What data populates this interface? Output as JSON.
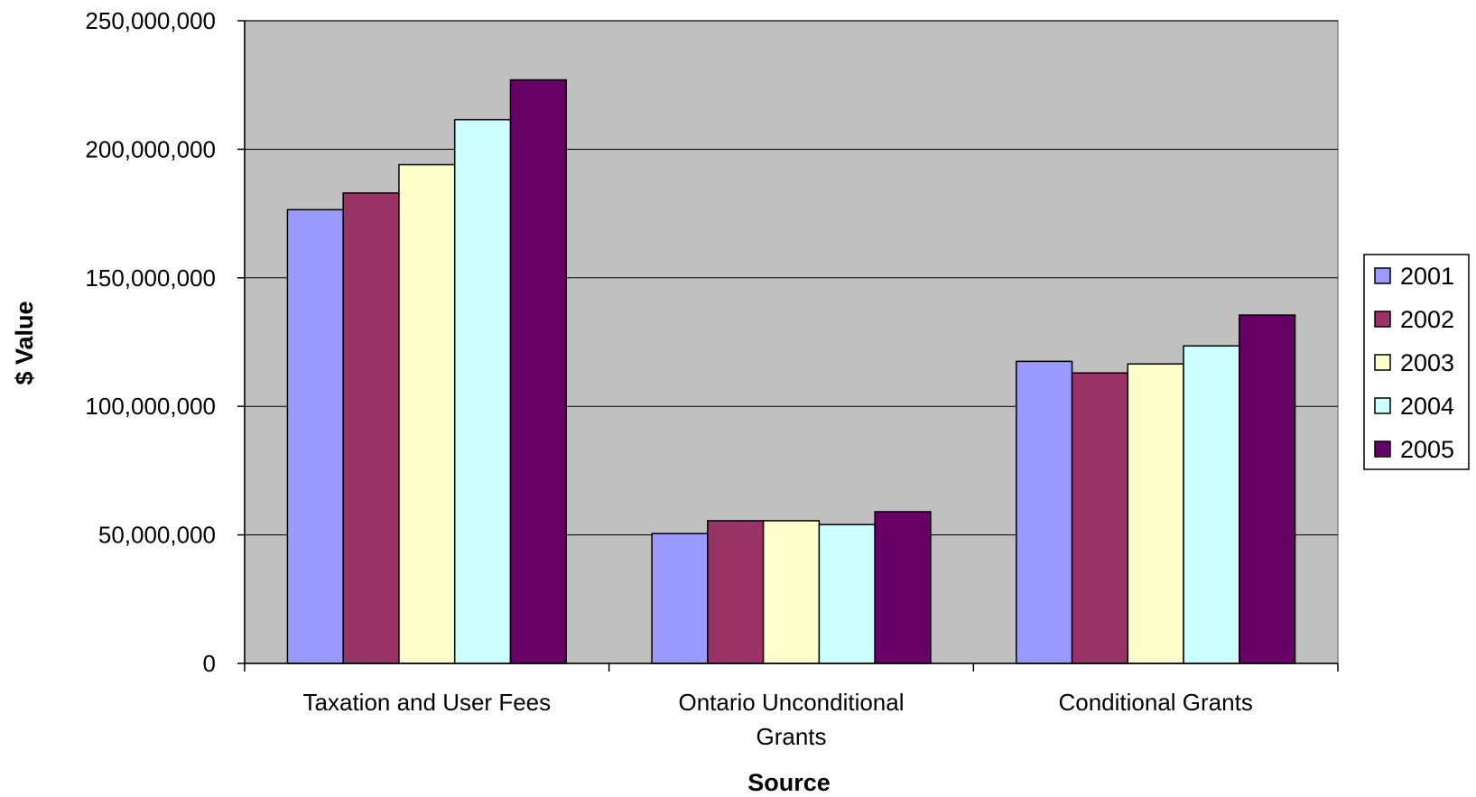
{
  "chart_data": {
    "type": "bar",
    "title": "",
    "xlabel": "Source",
    "ylabel": "$ Value",
    "categories": [
      [
        "Taxation and User Fees"
      ],
      [
        "Ontario Unconditional",
        "Grants"
      ],
      [
        "Conditional Grants"
      ]
    ],
    "series": [
      {
        "name": "2001",
        "color": "#9999FF",
        "values": [
          176500000,
          50500000,
          117500000
        ]
      },
      {
        "name": "2002",
        "color": "#993366",
        "values": [
          183000000,
          55500000,
          113000000
        ]
      },
      {
        "name": "2003",
        "color": "#FFFFCC",
        "values": [
          194000000,
          55500000,
          116500000
        ]
      },
      {
        "name": "2004",
        "color": "#CCFFFF",
        "values": [
          211500000,
          54000000,
          123500000
        ]
      },
      {
        "name": "2005",
        "color": "#660066",
        "values": [
          227000000,
          59000000,
          135500000
        ]
      }
    ],
    "ylim": [
      0,
      250000000
    ],
    "yticks": [
      0,
      50000000,
      100000000,
      150000000,
      200000000,
      250000000
    ],
    "ytick_labels": [
      "0",
      "50,000,000",
      "100,000,000",
      "150,000,000",
      "200,000,000",
      "250,000,000"
    ],
    "grid": true,
    "plot_background": "#C0C0C0",
    "legend_position": "right"
  }
}
